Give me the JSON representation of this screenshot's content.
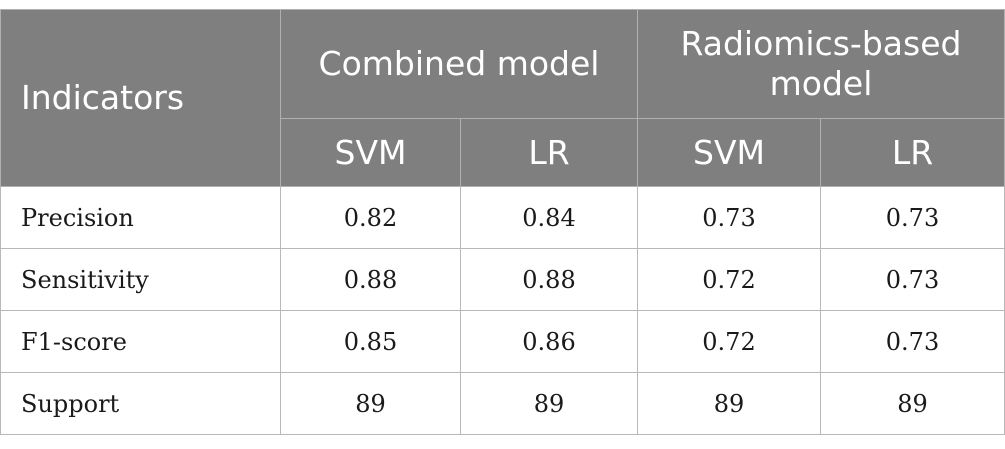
{
  "table": {
    "indicators_header": "Indicators",
    "groups": [
      {
        "label": "Combined model",
        "columns": [
          "SVM",
          "LR"
        ]
      },
      {
        "label": "Radiomics-based model",
        "columns": [
          "SVM",
          "LR"
        ]
      }
    ],
    "rows": [
      {
        "label": "Precision",
        "values": [
          "0.82",
          "0.84",
          "0.73",
          "0.73"
        ]
      },
      {
        "label": "Sensitivity",
        "values": [
          "0.88",
          "0.88",
          "0.72",
          "0.73"
        ]
      },
      {
        "label": "F1-score",
        "values": [
          "0.85",
          "0.86",
          "0.72",
          "0.73"
        ]
      },
      {
        "label": "Support",
        "values": [
          "89",
          "89",
          "89",
          "89"
        ]
      }
    ]
  }
}
